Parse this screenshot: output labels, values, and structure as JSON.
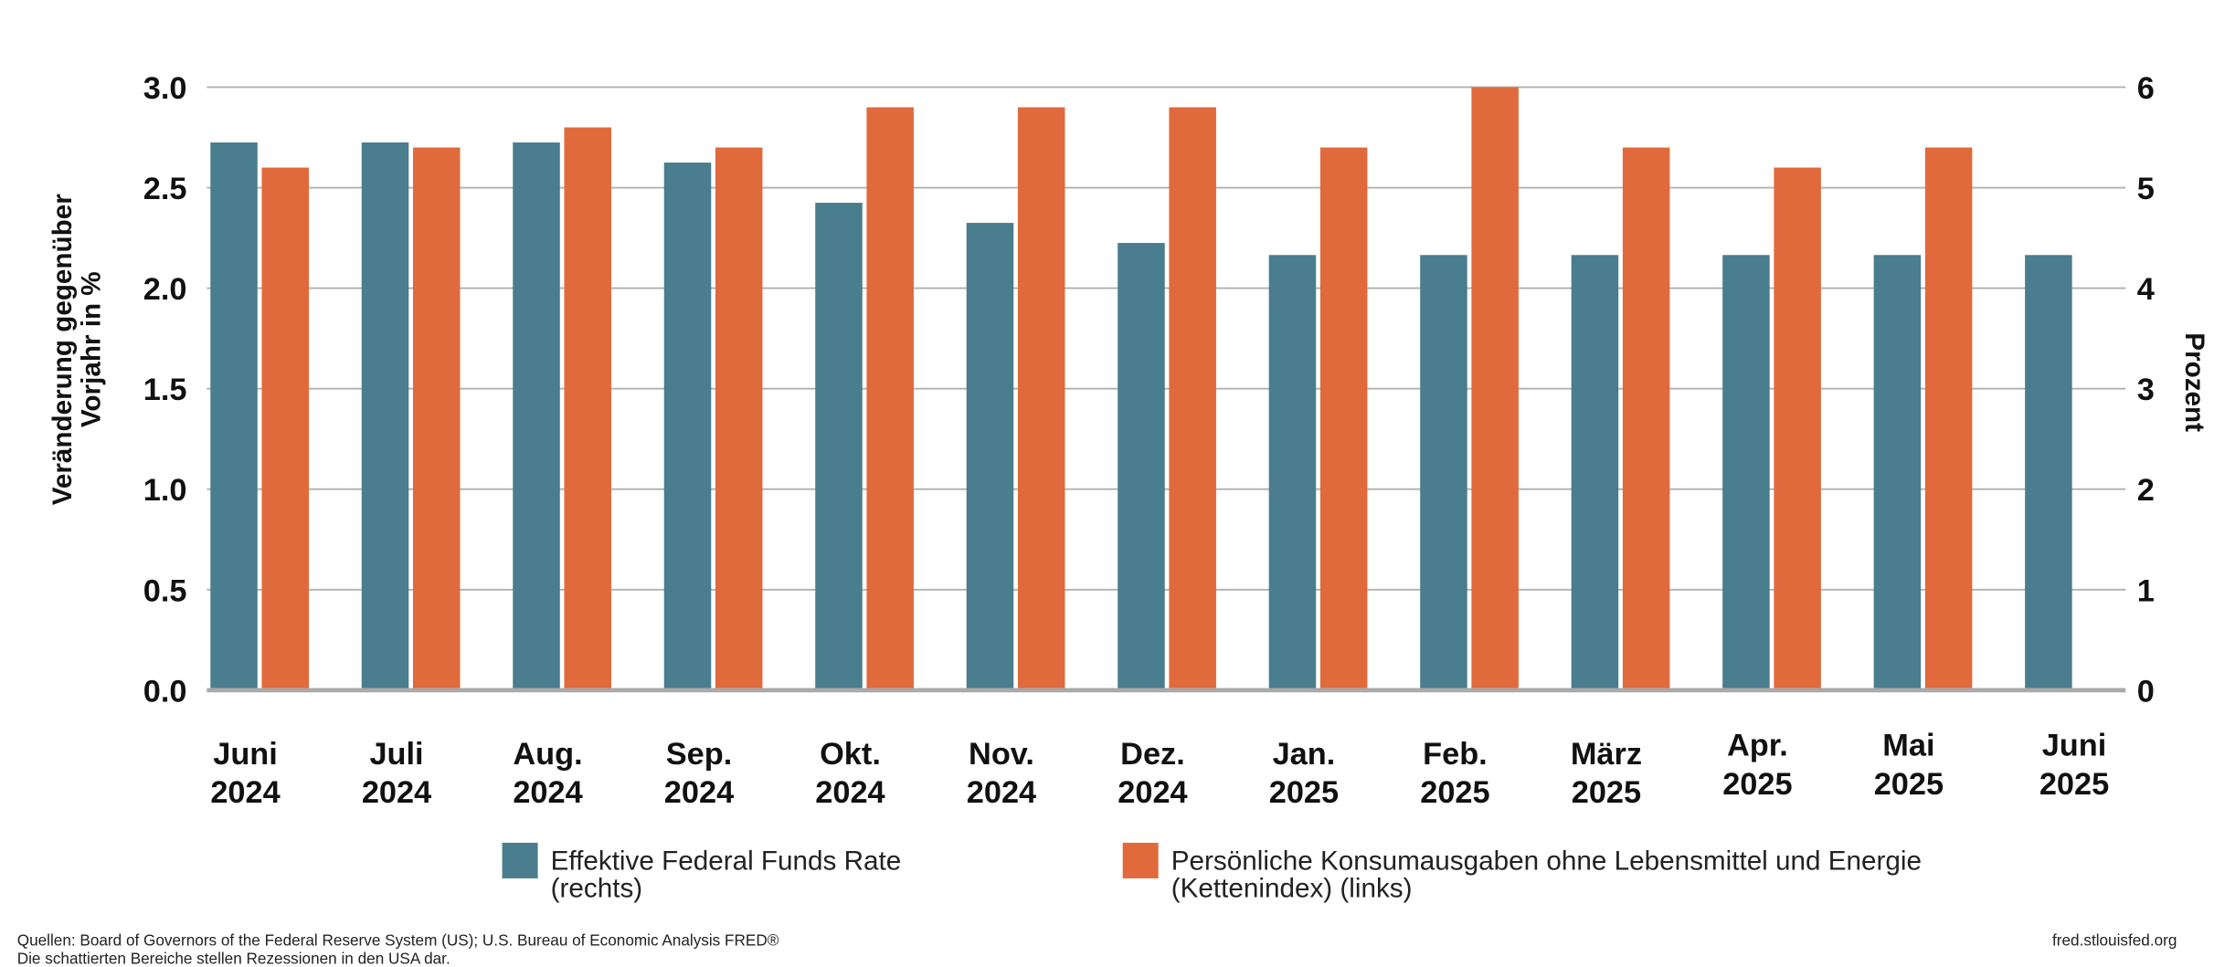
{
  "chart_data": {
    "type": "bar",
    "y_label": [
      "Veränderung gegenüber",
      "Vorjahr in %"
    ],
    "y2_label": "Prozent",
    "categories": [
      [
        "Juni",
        "2024"
      ],
      [
        "Juli",
        "2024"
      ],
      [
        "Aug.",
        "2024"
      ],
      [
        "Sep.",
        "2024"
      ],
      [
        "Okt.",
        "2024"
      ],
      [
        "Nov.",
        "2024"
      ],
      [
        "Dez.",
        "2024"
      ],
      [
        "Jan.",
        "2025"
      ],
      [
        "Feb.",
        "2025"
      ],
      [
        "März",
        "2025"
      ],
      [
        "Apr.",
        "2025"
      ],
      [
        "Mai",
        "2025"
      ],
      [
        "Juni",
        "2025"
      ]
    ],
    "series": [
      {
        "name": "Effektive Federal Funds Rate (rechts)",
        "color": "#4a7d8e",
        "axis": "y2",
        "values": [
          5.45,
          5.45,
          5.45,
          5.25,
          4.85,
          4.65,
          4.45,
          4.33,
          4.33,
          4.33,
          4.33,
          4.33,
          4.33
        ]
      },
      {
        "name": "Persönliche Konsumausgaben ohne Lebensmittel und Energie (Kettenindex) (links)",
        "color": "#e06a3c",
        "values": [
          2.6,
          2.7,
          2.8,
          2.7,
          2.9,
          2.9,
          2.9,
          2.7,
          3.0,
          2.7,
          2.6,
          2.7,
          null
        ]
      }
    ],
    "ylim": [
      0,
      3
    ],
    "yticks": [
      {
        "value": 0,
        "label": "0.0"
      },
      0.5,
      {
        "value": 1,
        "label": "1.0"
      },
      1.5,
      {
        "value": 2,
        "label": "2.0"
      },
      2.5,
      {
        "value": 3,
        "label": "3.0"
      }
    ],
    "y2lim": [
      0,
      6
    ],
    "y2ticks": [
      0,
      1,
      2,
      3,
      4,
      5,
      6
    ],
    "grid": true,
    "source": [
      "Quellen: Board of Governors of the Federal Reserve System (US); U.S. Bureau of Economic Analysis FRED®",
      "Die schattierten Bereiche stellen Rezessionen in den USA dar."
    ],
    "credit": "fred.stlouisfed.org"
  }
}
